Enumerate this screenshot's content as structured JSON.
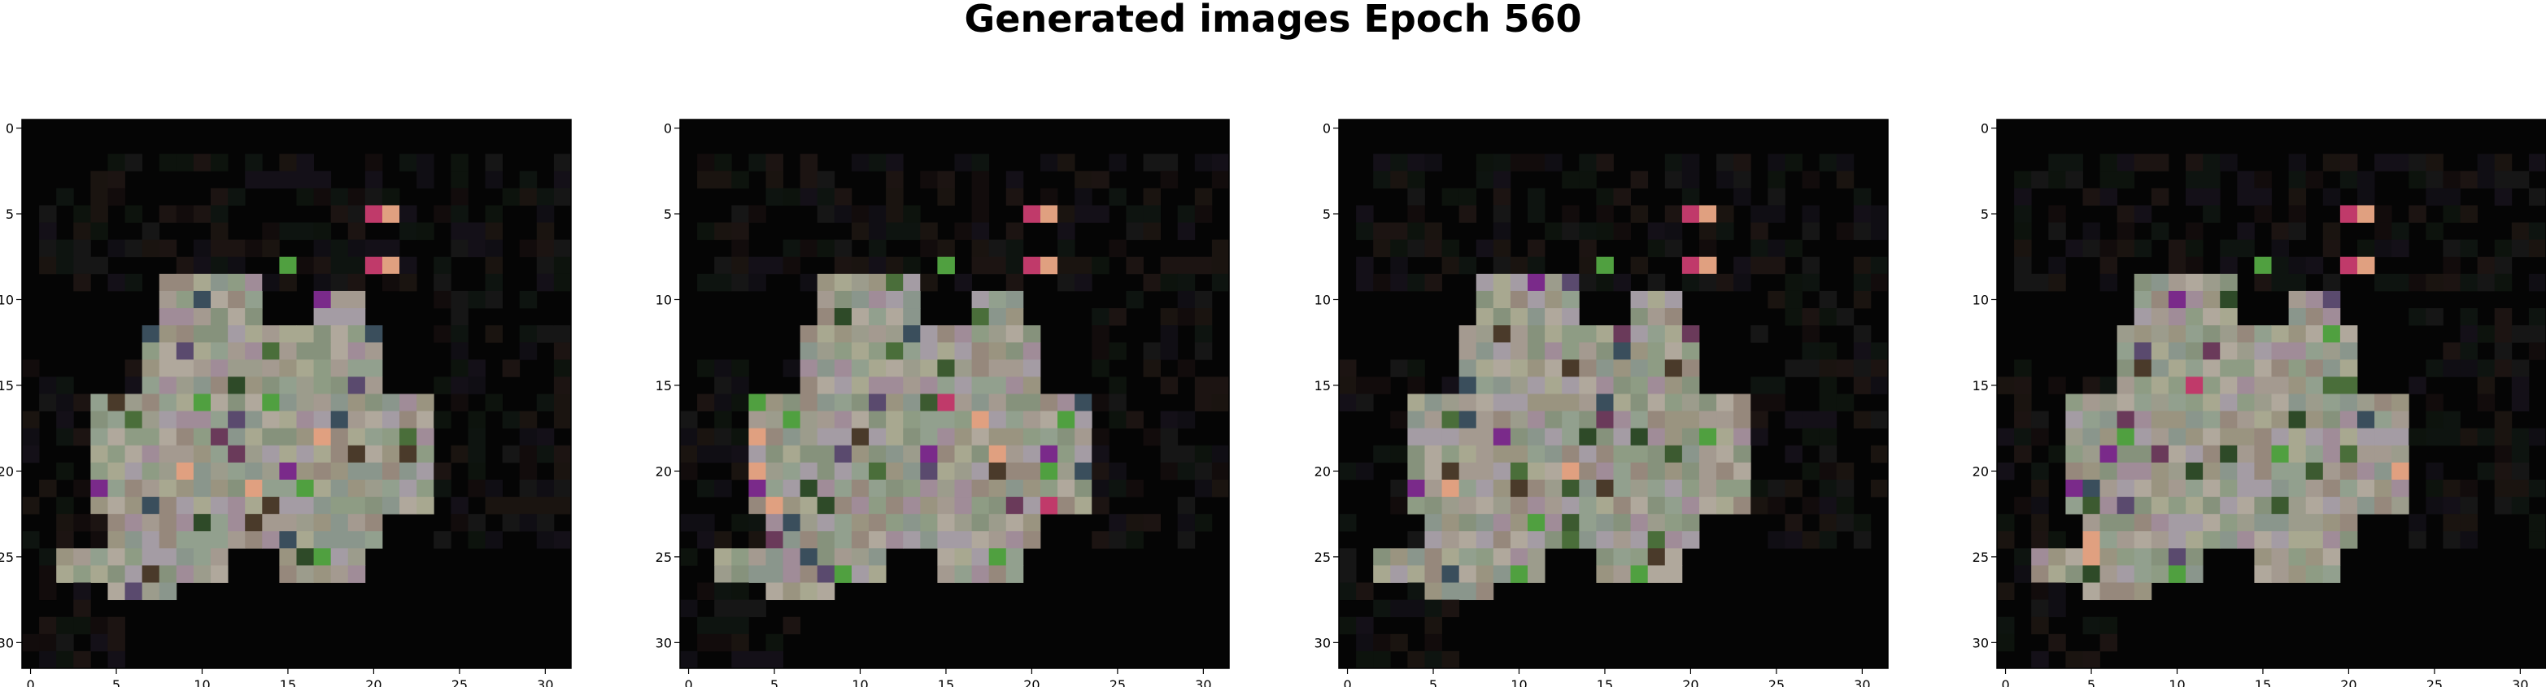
{
  "figure": {
    "title": "Generated images Epoch 560"
  },
  "palette": {
    "background": "#050505",
    "dark_tints": [
      "#120c0c",
      "#0d130d",
      "#141018",
      "#1a1410",
      "#100e14",
      "#161616",
      "#1c1412",
      "#0e1410"
    ],
    "blob_tints": [
      "#9c9c8c",
      "#a49a90",
      "#8e9c84",
      "#a08c98",
      "#92a08e",
      "#b0a89c",
      "#8a968c",
      "#9a9480",
      "#a49ca4",
      "#86927c",
      "#a8a890",
      "#96887c"
    ],
    "accent_tints": [
      "#3c5a30",
      "#4a6e3a",
      "#5a4a6e",
      "#6a3a5a",
      "#2e4a28",
      "#4a3a2a",
      "#3a4e5c",
      "#c03a6a",
      "#e0a080",
      "#50a040",
      "#7a2a8a"
    ]
  },
  "chart_data": [
    {
      "type": "heatmap",
      "panel": 1,
      "xticks": [
        0,
        5,
        10,
        15,
        20,
        25,
        30
      ],
      "yticks": [
        0,
        5,
        10,
        15,
        20,
        25,
        30
      ],
      "xlim": [
        -0.5,
        31.5
      ],
      "ylim": [
        31.5,
        -0.5
      ],
      "grid": false
    },
    {
      "type": "heatmap",
      "panel": 2,
      "xticks": [
        0,
        5,
        10,
        15,
        20,
        25,
        30
      ],
      "yticks": [
        0,
        5,
        10,
        15,
        20,
        25,
        30
      ],
      "xlim": [
        -0.5,
        31.5
      ],
      "ylim": [
        31.5,
        -0.5
      ],
      "grid": false
    },
    {
      "type": "heatmap",
      "panel": 3,
      "xticks": [
        0,
        5,
        10,
        15,
        20,
        25,
        30
      ],
      "yticks": [
        0,
        5,
        10,
        15,
        20,
        25,
        30
      ],
      "xlim": [
        -0.5,
        31.5
      ],
      "ylim": [
        31.5,
        -0.5
      ],
      "grid": false
    },
    {
      "type": "heatmap",
      "panel": 4,
      "xticks": [
        0,
        5,
        10,
        15,
        20,
        25,
        30
      ],
      "yticks": [
        0,
        5,
        10,
        15,
        20,
        25,
        30
      ],
      "xlim": [
        -0.5,
        31.5
      ],
      "ylim": [
        31.5,
        -0.5
      ],
      "grid": false
    }
  ]
}
